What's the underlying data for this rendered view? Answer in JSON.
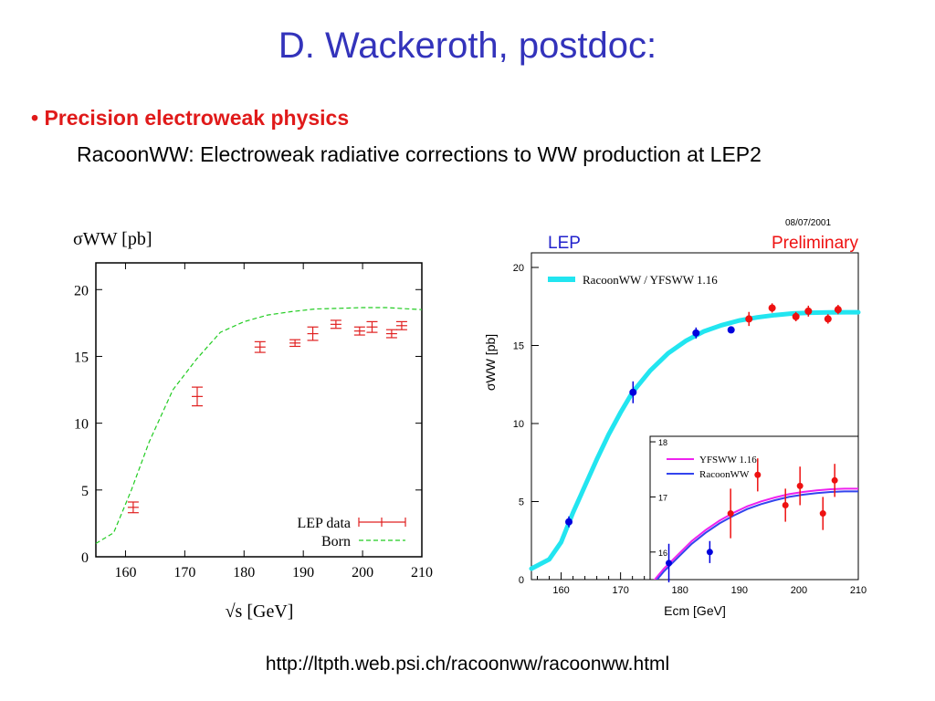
{
  "slide": {
    "title": "D. Wackeroth, postdoc:",
    "bullet_marker": "•",
    "bullet_text": "Precision electroweak physics",
    "subtitle": "RacoonWW:  Electroweak radiative corrections to WW production at LEP2",
    "url": "http://ltpth.web.psi.ch/racoonww/racoonww.html"
  },
  "colors": {
    "title": "#3333bb",
    "bullet": "#e01a1a",
    "lep_data": "#e02020",
    "born": "#22cc22",
    "racoon_band": "#22e5f0",
    "blue_points": "#0000dd",
    "red_points": "#ee1111",
    "yfsww": "#ee22ee",
    "racoonww_inset": "#3344ee",
    "lep_label": "#2222cc",
    "preliminary": "#ee1111"
  },
  "chart_data": [
    {
      "type": "scatter",
      "ylabel": "σWW [pb]",
      "xlabel": "√s [GeV]",
      "xlim": [
        155,
        210
      ],
      "ylim": [
        0,
        22
      ],
      "xticks": [
        160,
        170,
        180,
        190,
        200,
        210
      ],
      "yticks": [
        0,
        5,
        10,
        15,
        20
      ],
      "legend_position": "bottom-right",
      "series": [
        {
          "name": "LEP data",
          "style": "errorbar",
          "points": [
            {
              "x": 161.3,
              "y": 3.7,
              "err": 0.4
            },
            {
              "x": 172.1,
              "y": 12.0,
              "err": 0.7
            },
            {
              "x": 182.7,
              "y": 15.7,
              "err": 0.4
            },
            {
              "x": 188.6,
              "y": 16.0,
              "err": 0.25
            },
            {
              "x": 191.6,
              "y": 16.7,
              "err": 0.5
            },
            {
              "x": 195.5,
              "y": 17.4,
              "err": 0.3
            },
            {
              "x": 199.5,
              "y": 16.9,
              "err": 0.3
            },
            {
              "x": 201.6,
              "y": 17.2,
              "err": 0.4
            },
            {
              "x": 204.9,
              "y": 16.7,
              "err": 0.3
            },
            {
              "x": 206.6,
              "y": 17.3,
              "err": 0.3
            }
          ]
        },
        {
          "name": "Born",
          "style": "dashed-line",
          "x": [
            155,
            158,
            161,
            164,
            168,
            172,
            176,
            180,
            184,
            188,
            192,
            196,
            200,
            204,
            208,
            210
          ],
          "y": [
            1.0,
            1.8,
            5.0,
            8.6,
            12.5,
            14.8,
            16.8,
            17.6,
            18.1,
            18.35,
            18.55,
            18.6,
            18.65,
            18.65,
            18.55,
            18.5
          ]
        }
      ]
    },
    {
      "type": "scatter",
      "header_left": "LEP",
      "header_right": "Preliminary",
      "date": "08/07/2001",
      "ylabel": "σWW [pb]",
      "xlabel": "Ecm [GeV]",
      "xlim": [
        155,
        210
      ],
      "ylim": [
        0,
        20
      ],
      "xticks": [
        160,
        170,
        180,
        190,
        200,
        210
      ],
      "yticks": [
        0,
        5,
        10,
        15,
        20
      ],
      "series": [
        {
          "name": "RacoonWW / YFSWW 1.16",
          "style": "band",
          "x": [
            155,
            158,
            160,
            162,
            164,
            166,
            168,
            170,
            172,
            175,
            178,
            181,
            184,
            187,
            190,
            193,
            196,
            199,
            202,
            205,
            208,
            210
          ],
          "y": [
            0.7,
            1.3,
            2.4,
            4.3,
            6.0,
            7.7,
            9.3,
            10.7,
            12.0,
            13.4,
            14.5,
            15.3,
            15.9,
            16.3,
            16.6,
            16.8,
            16.95,
            17.05,
            17.1,
            17.12,
            17.13,
            17.13
          ]
        },
        {
          "name": "blue points",
          "style": "errorbar",
          "points": [
            {
              "x": 161.3,
              "y": 3.7,
              "err": 0.35
            },
            {
              "x": 172.1,
              "y": 12.0,
              "err": 0.7
            },
            {
              "x": 182.7,
              "y": 15.8,
              "err": 0.35
            },
            {
              "x": 188.6,
              "y": 16.0,
              "err": 0.2
            }
          ]
        },
        {
          "name": "red points",
          "style": "errorbar",
          "points": [
            {
              "x": 191.6,
              "y": 16.7,
              "err": 0.45
            },
            {
              "x": 195.5,
              "y": 17.4,
              "err": 0.3
            },
            {
              "x": 199.5,
              "y": 16.85,
              "err": 0.3
            },
            {
              "x": 201.6,
              "y": 17.2,
              "err": 0.35
            },
            {
              "x": 204.9,
              "y": 16.7,
              "err": 0.3
            },
            {
              "x": 206.6,
              "y": 17.3,
              "err": 0.3
            }
          ]
        }
      ]
    },
    {
      "type": "line",
      "inset": true,
      "xlim": [
        180,
        210
      ],
      "ylim": [
        15.5,
        18.1
      ],
      "yticks": [
        16,
        17,
        18
      ],
      "series": [
        {
          "name": "YFSWW 1.16",
          "x": [
            180,
            182,
            184,
            186,
            188,
            190,
            192,
            194,
            196,
            198,
            200,
            202,
            204,
            206,
            208,
            210
          ],
          "y": [
            15.4,
            15.7,
            15.95,
            16.2,
            16.4,
            16.57,
            16.71,
            16.83,
            16.92,
            16.99,
            17.05,
            17.09,
            17.12,
            17.14,
            17.15,
            17.15
          ]
        },
        {
          "name": "RacoonWW",
          "x": [
            180,
            182,
            184,
            186,
            188,
            190,
            192,
            194,
            196,
            198,
            200,
            202,
            204,
            206,
            208,
            210
          ],
          "y": [
            15.35,
            15.65,
            15.9,
            16.15,
            16.35,
            16.52,
            16.66,
            16.78,
            16.87,
            16.94,
            17.0,
            17.04,
            17.07,
            17.09,
            17.1,
            17.1
          ]
        },
        {
          "name": "blue points",
          "style": "errorbar",
          "points": [
            {
              "x": 182.7,
              "y": 15.8,
              "err": 0.35
            },
            {
              "x": 188.6,
              "y": 16.0,
              "err": 0.2
            }
          ]
        },
        {
          "name": "red points",
          "style": "errorbar",
          "points": [
            {
              "x": 191.6,
              "y": 16.7,
              "err": 0.45
            },
            {
              "x": 195.5,
              "y": 17.4,
              "err": 0.3
            },
            {
              "x": 199.5,
              "y": 16.85,
              "err": 0.3
            },
            {
              "x": 201.6,
              "y": 17.2,
              "err": 0.35
            },
            {
              "x": 204.9,
              "y": 16.7,
              "err": 0.3
            },
            {
              "x": 206.6,
              "y": 17.3,
              "err": 0.3
            }
          ]
        }
      ]
    }
  ]
}
